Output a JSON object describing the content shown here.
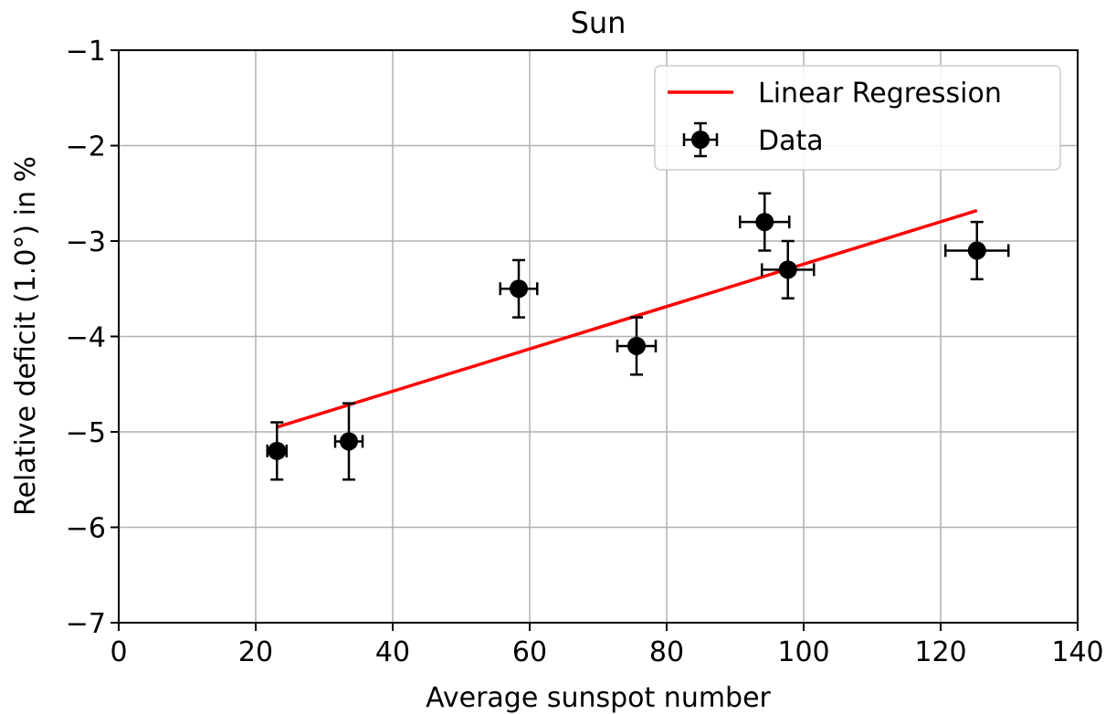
{
  "chart_data": {
    "type": "scatter",
    "title": "Sun",
    "xlabel": "Average sunspot number",
    "ylabel": "Relative deficit (1.0°) in %",
    "xlim": [
      0,
      140
    ],
    "ylim": [
      -7,
      -1
    ],
    "xticks": [
      0,
      20,
      40,
      60,
      80,
      100,
      120,
      140
    ],
    "yticks": [
      -7,
      -6,
      -5,
      -4,
      -3,
      -2,
      -1
    ],
    "xtick_labels": [
      "0",
      "20",
      "40",
      "60",
      "80",
      "100",
      "120",
      "140"
    ],
    "ytick_labels": [
      "−7",
      "−6",
      "−5",
      "−4",
      "−3",
      "−2",
      "−1"
    ],
    "grid": true,
    "legend_position": "top-right",
    "series": [
      {
        "name": "Data",
        "kind": "errorbar",
        "color": "#000000",
        "points": [
          {
            "x": 23.1,
            "y": -5.2,
            "xerr": 1.4,
            "yerr": 0.3
          },
          {
            "x": 33.6,
            "y": -5.1,
            "xerr": 2.0,
            "yerr": 0.4
          },
          {
            "x": 58.4,
            "y": -3.5,
            "xerr": 2.7,
            "yerr": 0.3
          },
          {
            "x": 75.6,
            "y": -4.1,
            "xerr": 2.8,
            "yerr": 0.3
          },
          {
            "x": 94.3,
            "y": -2.8,
            "xerr": 3.6,
            "yerr": 0.3
          },
          {
            "x": 97.7,
            "y": -3.3,
            "xerr": 3.8,
            "yerr": 0.3
          },
          {
            "x": 125.3,
            "y": -3.1,
            "xerr": 4.6,
            "yerr": 0.3
          }
        ]
      },
      {
        "name": "Linear Regression",
        "kind": "line",
        "color": "#ff0000",
        "x": [
          23.1,
          125.3
        ],
        "y": [
          -4.95,
          -2.68
        ]
      }
    ]
  }
}
